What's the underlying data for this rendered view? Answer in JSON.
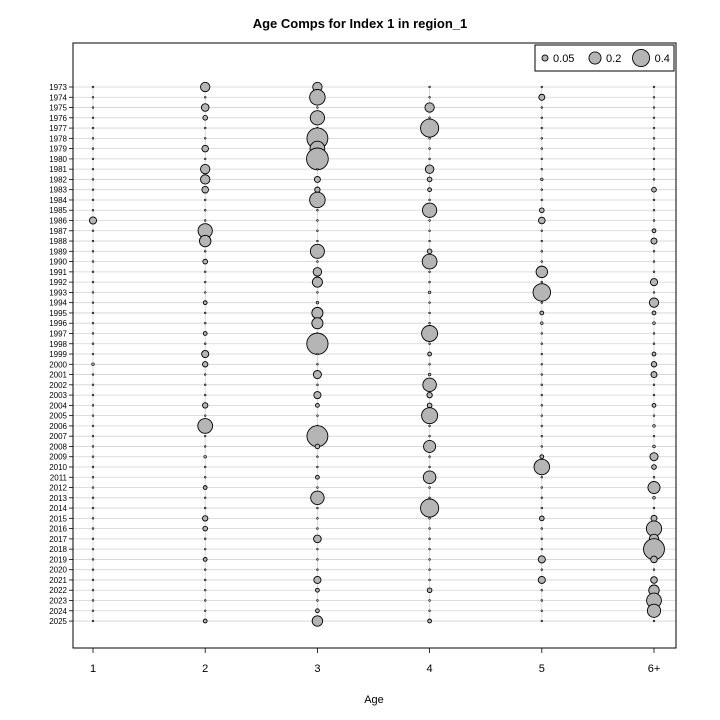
{
  "colors": {
    "bubble_fill": "#b5b5b5",
    "bubble_stroke": "#000000",
    "gridline": "#d3d3d3",
    "frame": "#000000",
    "background": "#ffffff"
  },
  "chart_data": {
    "type": "scatter",
    "subtype": "bubble",
    "title": "Age Comps for Index 1 in region_1",
    "xlabel": "Age",
    "ylabel": "",
    "categories": [
      "1",
      "2",
      "3",
      "4",
      "5",
      "6+"
    ],
    "years": [
      1973,
      1974,
      1975,
      1976,
      1977,
      1978,
      1979,
      1980,
      1981,
      1982,
      1983,
      1984,
      1985,
      1986,
      1987,
      1988,
      1989,
      1990,
      1991,
      1992,
      1993,
      1994,
      1995,
      1996,
      1997,
      1998,
      1999,
      2000,
      2001,
      2002,
      2003,
      2004,
      2005,
      2006,
      2007,
      2008,
      2009,
      2010,
      2011,
      2012,
      2013,
      2014,
      2015,
      2016,
      2017,
      2018,
      2019,
      2020,
      2021,
      2022,
      2023,
      2024,
      2025
    ],
    "values": [
      [
        0.0,
        0.12,
        0.12,
        0.0,
        0.0,
        0.0
      ],
      [
        0.0,
        0.0,
        0.33,
        0.0,
        0.05,
        0.0
      ],
      [
        0.0,
        0.08,
        0.0,
        0.12,
        0.0,
        0.0
      ],
      [
        0.0,
        0.03,
        0.28,
        0.0,
        0.0,
        0.0
      ],
      [
        0.0,
        0.0,
        0.0,
        0.45,
        0.0,
        0.0
      ],
      [
        0.0,
        0.0,
        0.6,
        0.0,
        0.0,
        0.0
      ],
      [
        0.0,
        0.06,
        0.3,
        0.0,
        0.0,
        0.0
      ],
      [
        0.0,
        0.0,
        0.65,
        0.0,
        0.0,
        0.0
      ],
      [
        0.0,
        0.12,
        0.0,
        0.1,
        0.0,
        0.0
      ],
      [
        0.0,
        0.12,
        0.05,
        0.03,
        0.01,
        0.0
      ],
      [
        0.0,
        0.06,
        0.04,
        0.02,
        0.0,
        0.03
      ],
      [
        0.0,
        0.0,
        0.33,
        0.0,
        0.0,
        0.0
      ],
      [
        0.0,
        0.0,
        0.0,
        0.28,
        0.03,
        0.0
      ],
      [
        0.07,
        0.0,
        0.0,
        0.0,
        0.06,
        0.0
      ],
      [
        0.0,
        0.28,
        0.0,
        0.0,
        0.0,
        0.02
      ],
      [
        0.0,
        0.18,
        0.0,
        0.0,
        0.0,
        0.05
      ],
      [
        0.0,
        0.0,
        0.27,
        0.03,
        0.0,
        0.0
      ],
      [
        0.0,
        0.03,
        0.0,
        0.3,
        0.0,
        0.0
      ],
      [
        0.0,
        0.0,
        0.1,
        0.0,
        0.18,
        0.0
      ],
      [
        0.0,
        0.0,
        0.14,
        0.0,
        0.0,
        0.07
      ],
      [
        0.0,
        0.0,
        0.0,
        0.01,
        0.42,
        0.0
      ],
      [
        0.0,
        0.02,
        0.01,
        0.0,
        0.0,
        0.12
      ],
      [
        0.0,
        0.0,
        0.17,
        0.0,
        0.02,
        0.02
      ],
      [
        0.0,
        0.0,
        0.17,
        0.0,
        0.01,
        0.01
      ],
      [
        0.0,
        0.02,
        0.0,
        0.35,
        0.0,
        0.0
      ],
      [
        0.0,
        0.0,
        0.62,
        0.0,
        0.0,
        0.0
      ],
      [
        0.0,
        0.07,
        0.0,
        0.02,
        0.0,
        0.02
      ],
      [
        0.01,
        0.04,
        0.0,
        0.0,
        0.0,
        0.04
      ],
      [
        0.0,
        0.0,
        0.09,
        0.01,
        0.0,
        0.05
      ],
      [
        0.0,
        0.0,
        0.0,
        0.25,
        0.0,
        0.0
      ],
      [
        0.0,
        0.0,
        0.07,
        0.04,
        0.0,
        0.0
      ],
      [
        0.0,
        0.04,
        0.02,
        0.03,
        0.0,
        0.02
      ],
      [
        0.0,
        0.0,
        0.0,
        0.35,
        0.0,
        0.0
      ],
      [
        0.0,
        0.3,
        0.0,
        0.0,
        0.0,
        0.01
      ],
      [
        0.0,
        0.0,
        0.6,
        0.0,
        0.0,
        0.0
      ],
      [
        0.0,
        0.0,
        0.03,
        0.2,
        0.0,
        0.01
      ],
      [
        0.0,
        0.01,
        0.0,
        0.0,
        0.02,
        0.09
      ],
      [
        0.0,
        0.0,
        0.0,
        0.0,
        0.33,
        0.03
      ],
      [
        0.0,
        0.0,
        0.02,
        0.22,
        0.0,
        0.0
      ],
      [
        0.0,
        0.02,
        0.0,
        0.0,
        0.0,
        0.2
      ],
      [
        0.0,
        0.0,
        0.25,
        0.0,
        0.0,
        0.01
      ],
      [
        0.0,
        0.0,
        0.0,
        0.45,
        0.0,
        0.0
      ],
      [
        0.0,
        0.04,
        0.0,
        0.0,
        0.03,
        0.05
      ],
      [
        0.0,
        0.03,
        0.0,
        0.0,
        0.0,
        0.32
      ],
      [
        0.0,
        0.0,
        0.08,
        0.0,
        0.0,
        0.12
      ],
      [
        0.0,
        0.0,
        0.0,
        0.0,
        0.0,
        0.6
      ],
      [
        0.0,
        0.02,
        0.0,
        0.0,
        0.07,
        0.06
      ],
      [
        0.0,
        0.0,
        0.0,
        0.0,
        0.0,
        0.0
      ],
      [
        0.0,
        0.0,
        0.07,
        0.0,
        0.07,
        0.06
      ],
      [
        0.0,
        0.0,
        0.02,
        0.03,
        0.0,
        0.15
      ],
      [
        0.0,
        0.0,
        0.0,
        0.0,
        0.0,
        0.3
      ],
      [
        0.0,
        0.0,
        0.02,
        0.0,
        0.0,
        0.24
      ],
      [
        0.0,
        0.02,
        0.15,
        0.02,
        0.0,
        0.0
      ]
    ],
    "legend": {
      "position": "top-right",
      "entries": [
        {
          "label": "0.05",
          "value": 0.05
        },
        {
          "label": "0.2",
          "value": 0.2
        },
        {
          "label": "0.4",
          "value": 0.4
        }
      ]
    },
    "grid": true
  }
}
